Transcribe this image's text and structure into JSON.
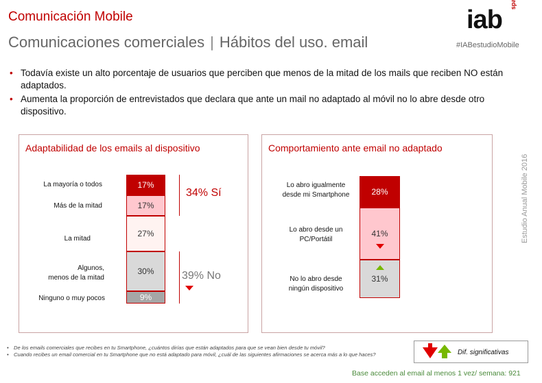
{
  "header": {
    "kicker": "Comunicación Mobile",
    "title_main": "Comunicaciones comerciales",
    "title_sep": "|",
    "title_sub": "Hábitos del uso. email",
    "logo": "iab",
    "logo_sub": "spain",
    "hashtag": "#IABestudioMobile"
  },
  "bullets": [
    "Todavía existe un alto porcentaje de usuarios que perciben que menos de la mitad de los mails que reciben NO están adaptados.",
    "Aumenta la proporción de entrevistados que declara que ante un mail no adaptado al móvil no lo abre desde otro dispositivo."
  ],
  "chart_data": [
    {
      "type": "bar",
      "orientation": "stacked-vertical",
      "title": "Adaptabilidad de los emails al dispositivo",
      "categories": [
        "La mayoría o todos",
        "Más de la mitad",
        "La mitad",
        "Algunos, menos de la mitad",
        "Ninguno o muy pocos"
      ],
      "values": [
        17,
        17,
        27,
        30,
        9
      ],
      "labels": [
        "17%",
        "17%",
        "27%",
        "30%",
        "9%"
      ],
      "colors": [
        "#c00000",
        "#ffc7ce",
        "#fff3f1",
        "#d9d9d9",
        "#a6a6a6"
      ],
      "label_colors": [
        "#ffffff",
        "#333333",
        "#333333",
        "#333333",
        "#ffffff"
      ],
      "annotations": [
        {
          "text": "34% Sí",
          "color": "#c00000",
          "marker": "none"
        },
        {
          "text": "39% No",
          "color": "#777777",
          "marker": "down-red"
        }
      ]
    },
    {
      "type": "bar",
      "orientation": "stacked-vertical",
      "title": "Comportamiento ante email no adaptado",
      "categories": [
        "Lo abro igualmente desde mi Smartphone",
        "Lo abro desde un PC/Portátil",
        "No lo abro desde ningún dispositivo"
      ],
      "values": [
        28,
        41,
        31
      ],
      "labels": [
        "28%",
        "41%",
        "31%"
      ],
      "colors": [
        "#c00000",
        "#ffc7ce",
        "#d9d9d9"
      ],
      "label_colors": [
        "#ffffff",
        "#333333",
        "#333333"
      ],
      "markers": [
        "none",
        "down-red",
        "up-green"
      ]
    }
  ],
  "left_chart": {
    "cats": [
      "La mayoría o todos",
      "Más de la mitad",
      "La mitad",
      "Algunos,",
      "menos de la mitad",
      "Ninguno o muy pocos"
    ],
    "si": "34% Sí",
    "no": "39% No"
  },
  "right_chart": {
    "cats": [
      "Lo abro igualmente",
      "desde mi Smartphone",
      "Lo abro desde un",
      "PC/Portátil",
      "No lo abro desde",
      "ningún dispositivo"
    ]
  },
  "footnotes": [
    "De los emails comerciales que recibes en tu Smartphone, ¿cuántos dirías que están adaptados para que se vean bien desde tu móvil?",
    "Cuando recibes un email comercial en tu Smartphone que no está adaptado para móvil, ¿cuál de las siguientes afirmaciones se acerca más a lo que haces?"
  ],
  "legend": {
    "label": "Dif. significativas",
    "down_color": "#e00000",
    "up_color": "#77b800"
  },
  "base_text": "Base acceden al email al menos 1 vez/ semana: 921",
  "side_text": "Estudio Anual Mobile 2016"
}
